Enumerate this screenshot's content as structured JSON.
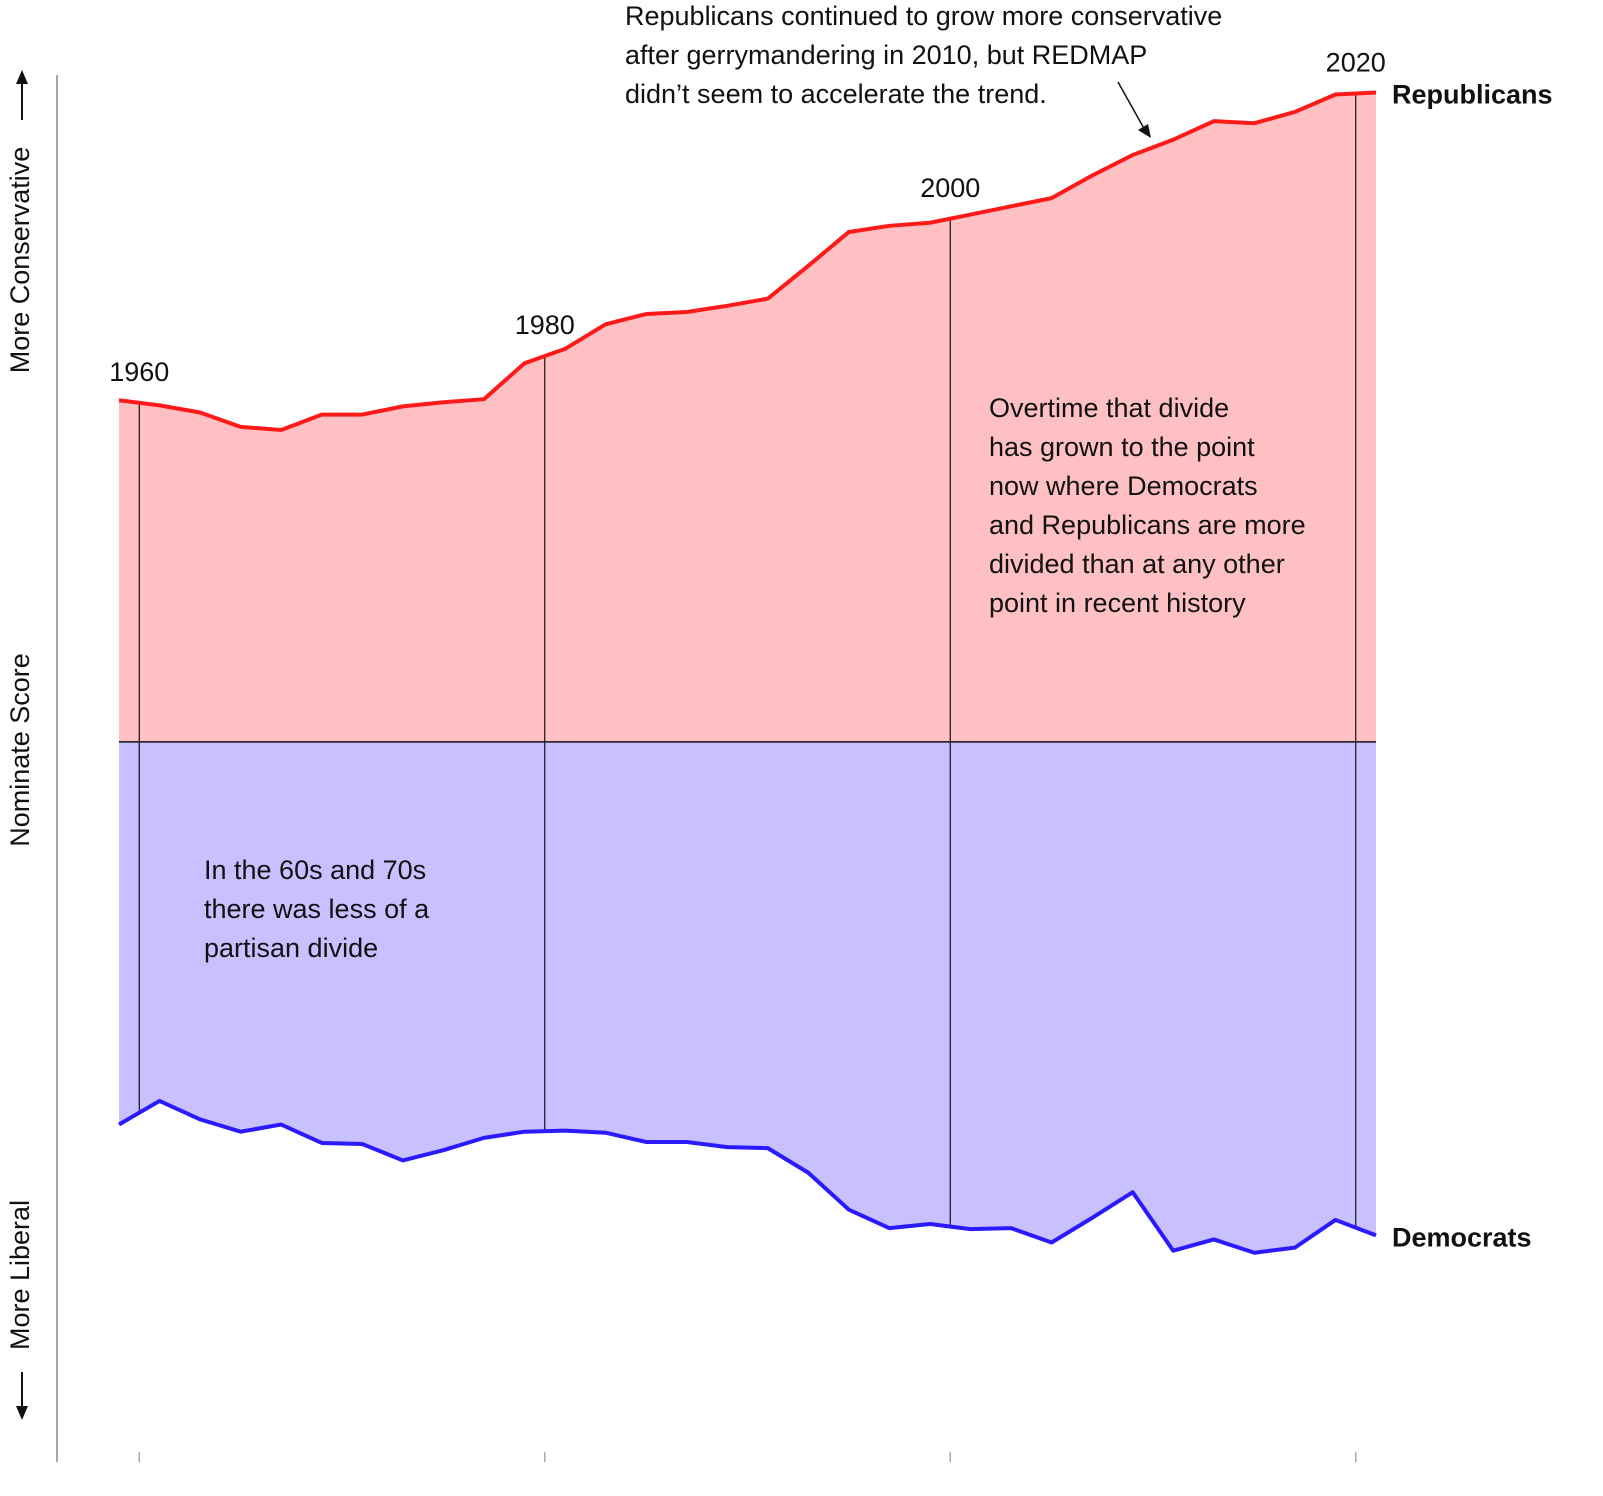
{
  "chart_data": {
    "type": "area",
    "x": [
      1959,
      1961,
      1963,
      1965,
      1967,
      1969,
      1971,
      1973,
      1975,
      1977,
      1979,
      1981,
      1983,
      1985,
      1987,
      1989,
      1991,
      1993,
      1995,
      1997,
      1999,
      2001,
      2003,
      2005,
      2007,
      2009,
      2011,
      2013,
      2015,
      2017,
      2019,
      2021
    ],
    "series": [
      {
        "name": "Republicans",
        "color": "#ff1a1a",
        "fill": "#ffc0c4",
        "values": [
          0.333,
          0.328,
          0.321,
          0.307,
          0.304,
          0.319,
          0.319,
          0.327,
          0.331,
          0.334,
          0.369,
          0.383,
          0.407,
          0.417,
          0.419,
          0.425,
          0.432,
          0.464,
          0.497,
          0.503,
          0.506,
          0.514,
          0.522,
          0.53,
          0.552,
          0.572,
          0.587,
          0.605,
          0.603,
          0.614,
          0.631,
          0.633
        ]
      },
      {
        "name": "Democrats",
        "color": "#2a1aff",
        "fill": "#c8c0ff",
        "values": [
          -0.373,
          -0.35,
          -0.368,
          -0.38,
          -0.373,
          -0.391,
          -0.392,
          -0.408,
          -0.398,
          -0.386,
          -0.38,
          -0.379,
          -0.381,
          -0.39,
          -0.39,
          -0.395,
          -0.396,
          -0.42,
          -0.456,
          -0.474,
          -0.47,
          -0.475,
          -0.474,
          -0.488,
          -0.464,
          -0.439,
          -0.496,
          -0.485,
          -0.498,
          -0.493,
          -0.466,
          -0.481
        ]
      }
    ],
    "xlim": [
      1959,
      2021
    ],
    "xticks": [
      1960,
      1980,
      2000,
      2020
    ],
    "ylim": [
      -0.7,
      0.65
    ],
    "y_axis_label": "Nominate Score",
    "y_top_label": "More Conservative",
    "y_bottom_label": "More Liberal",
    "annotations": [
      [
        "Republicans continued to grow more conservative",
        "after gerrymandering in 2010, but REDMAP",
        "didn’t seem to accelerate the trend."
      ],
      [
        "Overtime that divide",
        "has grown to the point",
        "now where Democrats",
        "and Republicans are more",
        "divided than at any other",
        "point in recent history"
      ],
      [
        "In the 60s and 70s",
        "there was less of a",
        "partisan divide"
      ]
    ]
  }
}
